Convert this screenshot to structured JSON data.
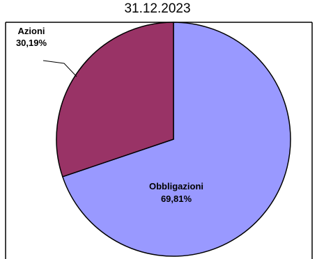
{
  "chart_data": {
    "type": "pie",
    "title": "31.12.2023",
    "start_angle_deg": 0,
    "direction": "clockwise",
    "border_color": "#000000",
    "slices": [
      {
        "label": "Obbligazioni",
        "value_label": "69,81%",
        "value": 69.81,
        "color": "#9999FF"
      },
      {
        "label": "Azioni",
        "value_label": "30,19%",
        "value": 30.19,
        "color": "#993366"
      }
    ]
  }
}
